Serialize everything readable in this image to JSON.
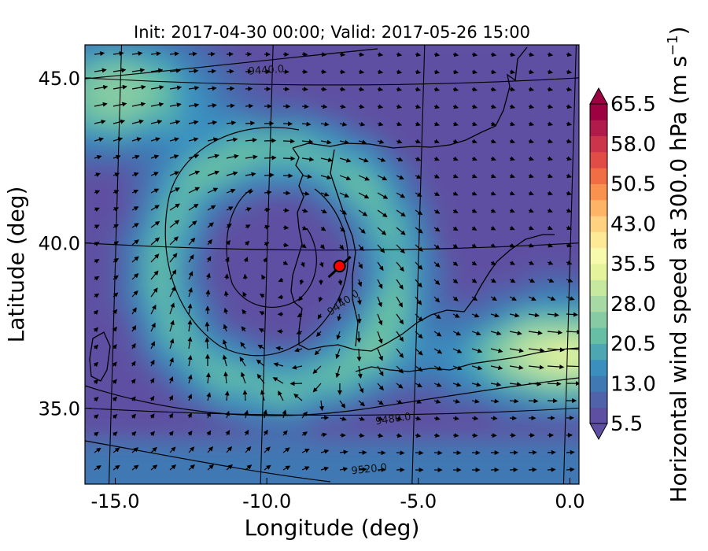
{
  "title": "Init: 2017-04-30 00:00; Valid: 2017-05-26 15:00",
  "map": {
    "xlabel": "Longitude (deg)",
    "ylabel": "Latitude (deg)",
    "xlim": [
      -16.0,
      0.3
    ],
    "ylim": [
      32.7,
      46.0
    ],
    "x_ticks": [
      "-15.0",
      "-10.0",
      "-5.0",
      "0.0"
    ],
    "x_tick_values": [
      -15.0,
      -10.0,
      -5.0,
      0.0
    ],
    "y_ticks": [
      "35.0",
      "40.0",
      "45.0"
    ],
    "y_tick_values": [
      35.0,
      40.0,
      45.0
    ],
    "contour_labels": [
      "9440.0",
      "9480.0",
      "9520.0",
      "9440.0",
      "9480.0"
    ],
    "marker": {
      "lon": -7.6,
      "lat": 39.3,
      "color": "#ff0000"
    },
    "low_center": {
      "lon": -9.6,
      "lat": 39.2
    }
  },
  "colorbar": {
    "label": "Horizontal wind speed at 300.0 hPa (m s$^{-1}$)",
    "label_text": "Horizontal wind speed at 300.0 hPa (m s",
    "label_sup": "−1",
    "label_end": ")",
    "ticks": [
      "5.5",
      "13.0",
      "20.5",
      "28.0",
      "35.5",
      "43.0",
      "50.5",
      "58.0",
      "65.5"
    ],
    "min": 5.5,
    "max": 65.5,
    "colors": [
      "#5e4fa2",
      "#4f62aa",
      "#3f78b3",
      "#3b8fbf",
      "#4ca7b3",
      "#66bfa4",
      "#86cba4",
      "#a6d9a4",
      "#c6e89f",
      "#e4f39c",
      "#f7f9ad",
      "#fee996",
      "#fed280",
      "#fdb466",
      "#f9924f",
      "#f16d43",
      "#e14c47",
      "#cc344c",
      "#b01b4c",
      "#9e0142"
    ]
  }
}
